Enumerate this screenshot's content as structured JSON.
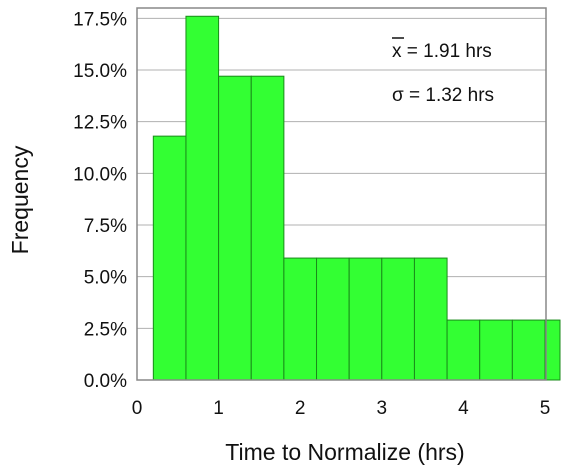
{
  "chart_data": {
    "type": "bar",
    "xlabel": "Time to Normalize (hrs)",
    "ylabel": "Frequency",
    "xlim": [
      0,
      5.2
    ],
    "ylim": [
      0,
      18
    ],
    "x_ticks": [
      "0",
      "1",
      "2",
      "3",
      "4",
      "5"
    ],
    "y_ticks": [
      "0.0%",
      "2.5%",
      "5.0%",
      "7.5%",
      "10.0%",
      "12.5%",
      "15.0%",
      "17.5%"
    ],
    "grid": "horizontal",
    "bins": [
      {
        "start": 0.2,
        "end": 0.6,
        "value": 11.8
      },
      {
        "start": 0.6,
        "end": 1.0,
        "value": 17.6
      },
      {
        "start": 1.0,
        "end": 1.4,
        "value": 14.7
      },
      {
        "start": 1.4,
        "end": 1.8,
        "value": 14.7
      },
      {
        "start": 1.8,
        "end": 2.2,
        "value": 5.9
      },
      {
        "start": 2.2,
        "end": 2.6,
        "value": 5.9
      },
      {
        "start": 2.6,
        "end": 3.0,
        "value": 5.9
      },
      {
        "start": 3.0,
        "end": 3.4,
        "value": 5.9
      },
      {
        "start": 3.4,
        "end": 3.8,
        "value": 5.9
      },
      {
        "start": 3.8,
        "end": 4.2,
        "value": 2.9
      },
      {
        "start": 4.2,
        "end": 4.6,
        "value": 2.9
      },
      {
        "start": 4.6,
        "end": 5.0,
        "value": 2.9
      },
      {
        "start": 5.0,
        "end": 5.4,
        "value": 2.9
      }
    ],
    "annotations": {
      "mean_symbol": "x",
      "mean_text": " = 1.91 hrs",
      "sd_text": "σ = 1.32 hrs"
    },
    "colors": {
      "bar_fill": "#33ff33",
      "bar_stroke": "#1a8a1a",
      "grid": "#b0b0b0"
    }
  }
}
